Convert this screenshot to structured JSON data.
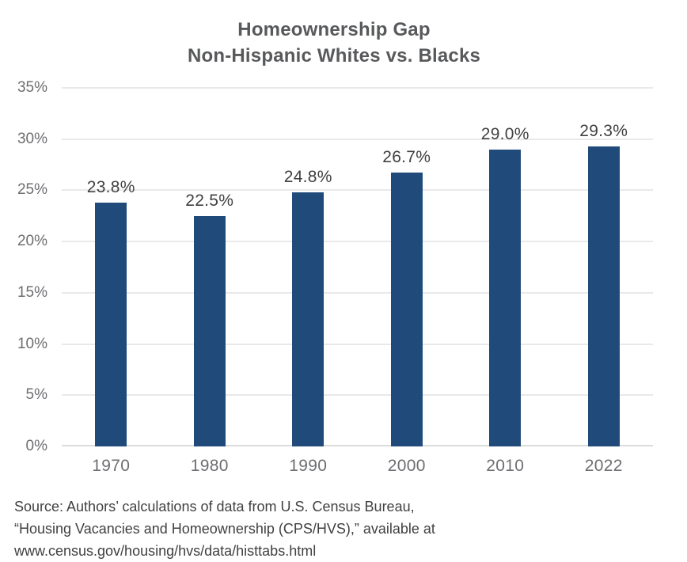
{
  "title": {
    "line1": "Homeownership Gap",
    "line2": "Non-Hispanic Whites vs. Blacks"
  },
  "chart_data": {
    "type": "bar",
    "title": "Homeownership Gap Non-Hispanic Whites vs. Blacks",
    "categories": [
      "1970",
      "1980",
      "1990",
      "2000",
      "2010",
      "2022"
    ],
    "values": [
      23.8,
      22.5,
      24.8,
      26.7,
      29.0,
      29.3
    ],
    "value_labels": [
      "23.8%",
      "22.5%",
      "24.8%",
      "26.7%",
      "29.0%",
      "29.3%"
    ],
    "xlabel": "",
    "ylabel": "",
    "ylim": [
      0,
      35
    ],
    "ytick_step": 5,
    "ytick_labels": [
      "0%",
      "5%",
      "10%",
      "15%",
      "20%",
      "25%",
      "30%",
      "35%"
    ],
    "grid": true,
    "legend": false,
    "bar_color": "#1f4a7a",
    "grid_color": "#e9e9e9",
    "axis_color": "#dcdcdc",
    "title_color": "#58595b",
    "tick_label_color": "#6d6e71",
    "value_label_color": "#414042"
  },
  "source": {
    "lines": [
      "Source: Authors’ calculations of data from U.S. Census Bureau,",
      "“Housing Vacancies and Homeownership (CPS/HVS),” available at",
      "www.census.gov/housing/hvs/data/histtabs.html"
    ]
  }
}
